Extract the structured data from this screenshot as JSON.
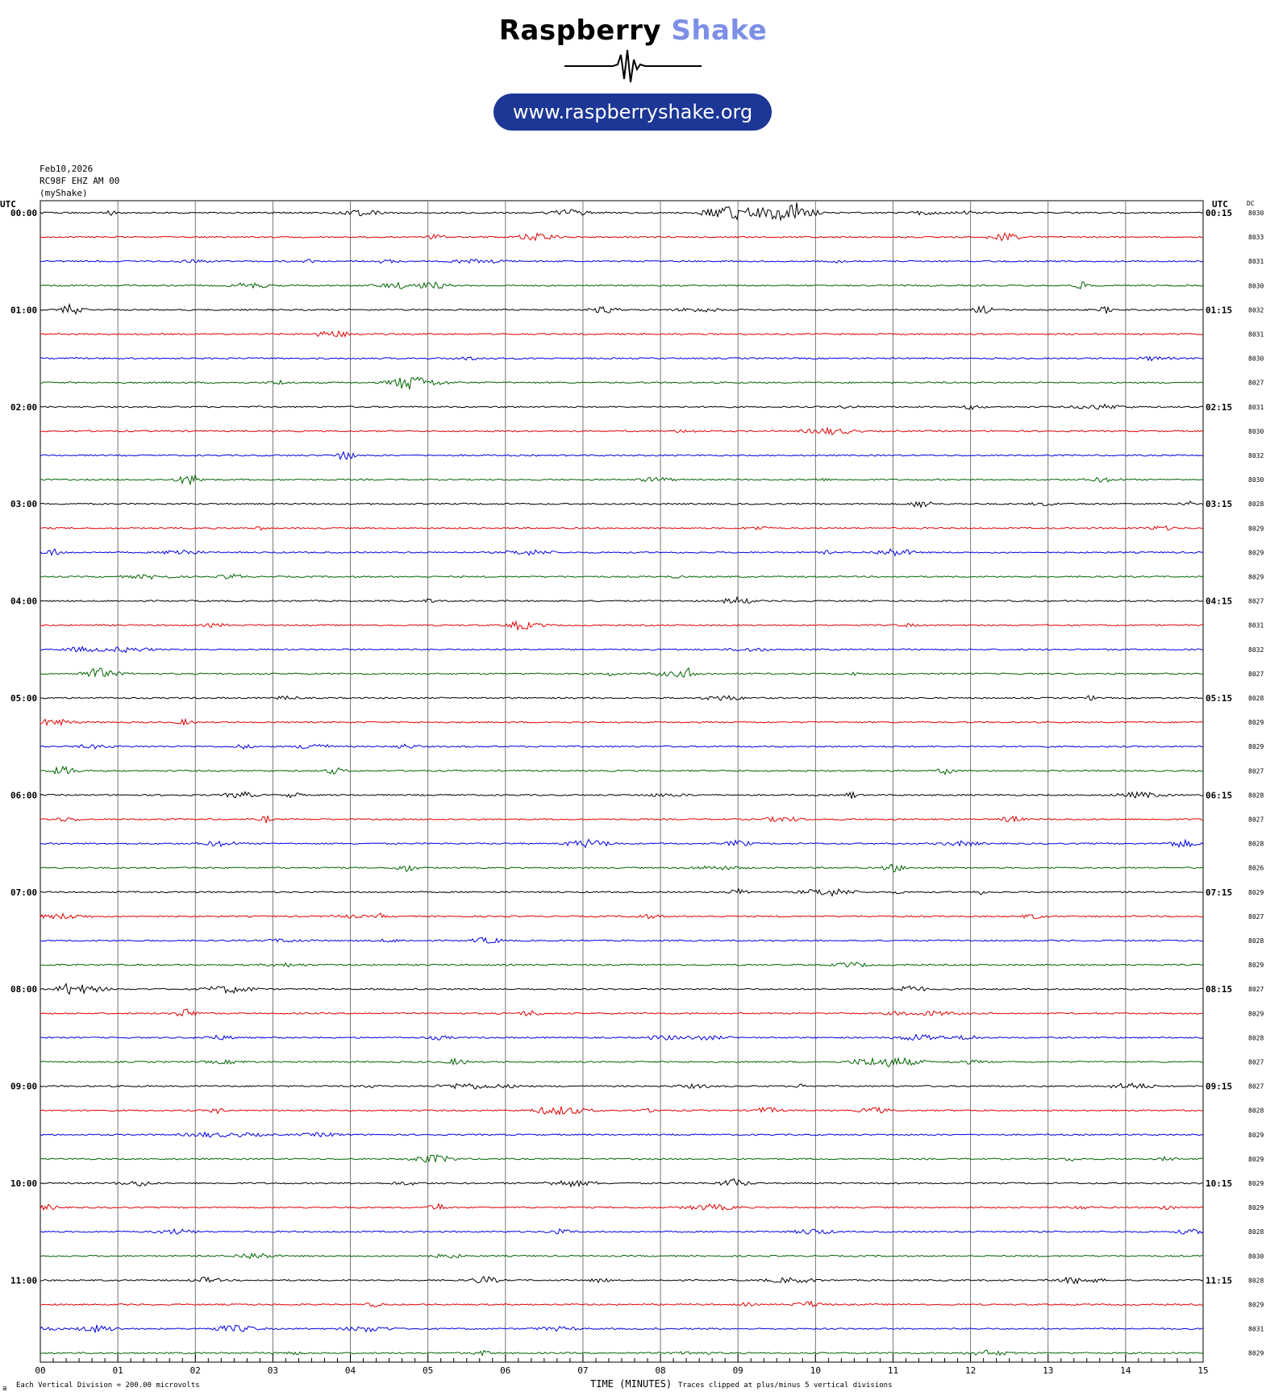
{
  "logo": {
    "title_part1": "Raspberry ",
    "title_part2": "Shake",
    "url": "www.raspberryshake.org",
    "colors": {
      "shake_text": "#7d8fe6",
      "url_pill": "#1c3796"
    }
  },
  "header": {
    "date": "Feb10,2026",
    "station": "RC98F EHZ AM 00",
    "network": "(myShake)"
  },
  "labels": {
    "utc_left": "UTC",
    "utc_right": "UTC",
    "dc": "DC"
  },
  "footer": {
    "x_axis_title": "TIME (MINUTES)",
    "division_note": "Each Vertical Division =  200.00 microvolts",
    "clip_note": "Traces clipped at plus/minus 5 vertical divisions",
    "corner_mark": "a"
  },
  "chart_data": {
    "type": "line",
    "title": "",
    "xlabel": "TIME (MINUTES)",
    "ylabel": "",
    "xlim": [
      0,
      15
    ],
    "x_ticks": [
      "00",
      "01",
      "02",
      "03",
      "04",
      "05",
      "06",
      "07",
      "08",
      "09",
      "10",
      "11",
      "12",
      "13",
      "14",
      "15"
    ],
    "grid": true,
    "trace_colors": [
      "#000000",
      "#e00000",
      "#0000e0",
      "#006400"
    ],
    "hour_labels_left": [
      "00:00",
      "01:00",
      "02:00",
      "03:00",
      "04:00",
      "05:00",
      "06:00",
      "07:00",
      "08:00",
      "09:00",
      "10:00",
      "11:00"
    ],
    "hour_labels_right": [
      "00:15",
      "01:15",
      "02:15",
      "03:15",
      "04:15",
      "05:15",
      "06:15",
      "07:15",
      "08:15",
      "09:15",
      "10:15",
      "11:15"
    ],
    "dc_offsets": [
      "8030",
      "8033",
      "8031",
      "8030",
      "8032",
      "8031",
      "8030",
      "8027",
      "8031",
      "8030",
      "8032",
      "8030",
      "8028",
      "8029",
      "8029",
      "8029",
      "8027",
      "8031",
      "8032",
      "8027",
      "8028",
      "8029",
      "8029",
      "8027",
      "8028",
      "8027",
      "8028",
      "8026",
      "8029",
      "8027",
      "8028",
      "8029",
      "8027",
      "8029",
      "8028",
      "8027",
      "8027",
      "8028",
      "8029",
      "8029",
      "8029",
      "8029",
      "8028",
      "8030",
      "8028",
      "8029",
      "8031",
      "8029"
    ]
  }
}
